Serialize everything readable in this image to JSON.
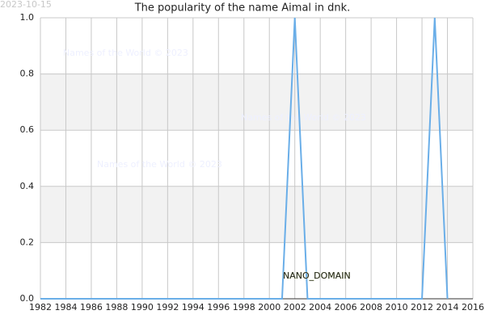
{
  "chart_data": {
    "type": "line",
    "title": "The popularity of the name Aimal in dnk.",
    "date": "2023-10-15",
    "watermarks": [
      "Names of the World © 2023",
      "Names of the World © 2023",
      "Names of the World © 2023"
    ],
    "annotation": "NANO_DOMAIN",
    "x": [
      1982,
      1983,
      1984,
      1985,
      1986,
      1987,
      1988,
      1989,
      1990,
      1991,
      1992,
      1993,
      1994,
      1995,
      1996,
      1997,
      1998,
      1999,
      2000,
      2001,
      2002,
      2003,
      2004,
      2005,
      2006,
      2007,
      2008,
      2009,
      2010,
      2011,
      2012,
      2013,
      2014
    ],
    "values": [
      0,
      0,
      0,
      0,
      0,
      0,
      0,
      0,
      0,
      0,
      0,
      0,
      0,
      0,
      0,
      0,
      0,
      0,
      0,
      0,
      1,
      0,
      0,
      0,
      0,
      0,
      0,
      0,
      0,
      0,
      0,
      1,
      0
    ],
    "color": "#6aaee8",
    "xlim": [
      1982,
      2016
    ],
    "xticks": [
      1982,
      1984,
      1986,
      1988,
      1990,
      1992,
      1994,
      1996,
      1998,
      2000,
      2002,
      2004,
      2006,
      2008,
      2010,
      2012,
      2014,
      2016
    ],
    "ylim": [
      0,
      1
    ],
    "yticks": [
      {
        "value": 0,
        "label": "0.0"
      },
      0.2,
      0.4,
      0.6,
      0.8,
      {
        "value": 1,
        "label": "1.0"
      }
    ],
    "grid": true
  }
}
